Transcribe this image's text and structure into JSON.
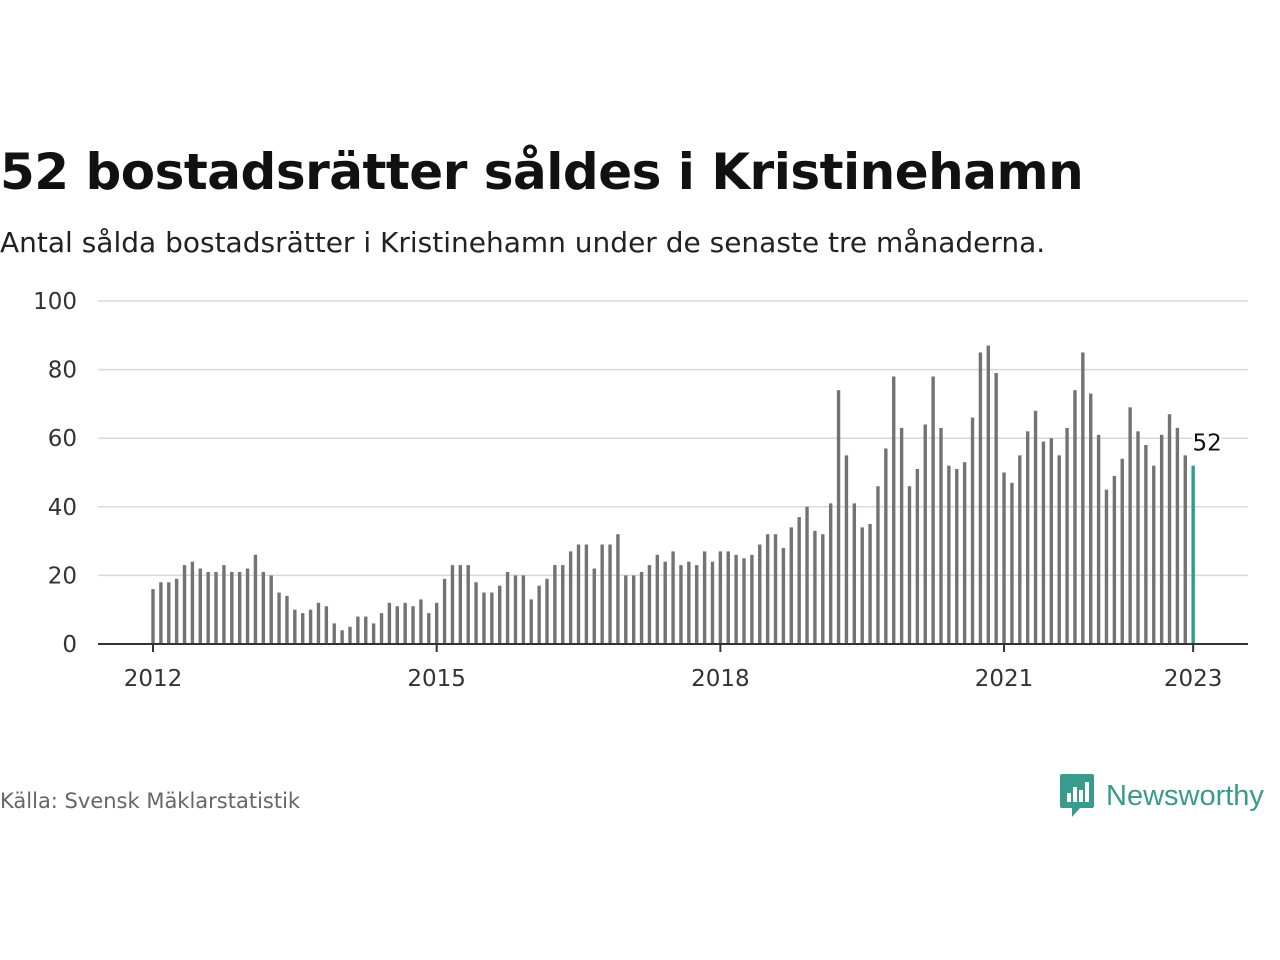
{
  "title": "52 bostadsrätter såldes i Kristinehamn",
  "subtitle": "Antal sålda bostadsrätter i Kristinehamn under de senaste tre månaderna.",
  "source": "Källa: Svensk Mäklarstatistik",
  "brand": {
    "name": "Newsworthy",
    "color": "#3a9a8c",
    "icon": "newsworthy-logo-icon"
  },
  "colors": {
    "bar": "#737373",
    "highlight": "#2a9d90",
    "grid": "#d9d9d9",
    "axis": "#333333"
  },
  "chart_data": {
    "type": "bar",
    "title": "52 bostadsrätter såldes i Kristinehamn",
    "subtitle": "Antal sålda bostadsrätter i Kristinehamn under de senaste tre månaderna.",
    "xlabel": "",
    "ylabel": "",
    "ylim": [
      0,
      100
    ],
    "y_ticks": [
      0,
      20,
      40,
      60,
      80,
      100
    ],
    "x_ticks": [
      "2012",
      "2015",
      "2018",
      "2021",
      "2023"
    ],
    "x_start": "2012-01",
    "x_end": "2023-01",
    "grid": true,
    "highlight_label": "52",
    "values": [
      16,
      18,
      18,
      19,
      23,
      24,
      22,
      21,
      21,
      23,
      21,
      21,
      22,
      26,
      21,
      20,
      15,
      14,
      10,
      9,
      10,
      12,
      11,
      6,
      4,
      5,
      8,
      8,
      6,
      9,
      12,
      11,
      12,
      11,
      13,
      9,
      12,
      19,
      23,
      23,
      23,
      18,
      15,
      15,
      17,
      21,
      20,
      20,
      13,
      17,
      19,
      23,
      23,
      27,
      29,
      29,
      22,
      29,
      29,
      32,
      20,
      20,
      21,
      23,
      26,
      24,
      27,
      23,
      24,
      23,
      27,
      24,
      27,
      27,
      26,
      25,
      26,
      29,
      32,
      32,
      28,
      34,
      37,
      40,
      33,
      32,
      41,
      74,
      55,
      41,
      34,
      35,
      46,
      57,
      78,
      63,
      46,
      51,
      64,
      78,
      63,
      52,
      51,
      53,
      66,
      85,
      87,
      79,
      50,
      47,
      55,
      62,
      68,
      59,
      60,
      55,
      63,
      74,
      85,
      73,
      61,
      45,
      49,
      54,
      69,
      62,
      58,
      52,
      61,
      67,
      63,
      55,
      52
    ]
  }
}
